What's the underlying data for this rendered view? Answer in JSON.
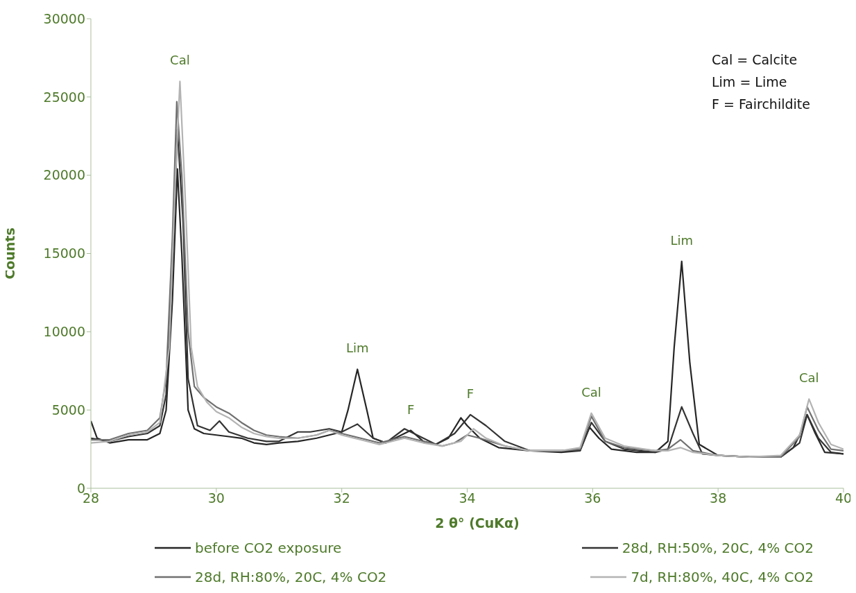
{
  "chart_data": {
    "type": "line",
    "xlabel": "2 θ° (CuKα)",
    "ylabel": "Counts",
    "xlim": [
      28,
      40
    ],
    "xticks": [
      28,
      30,
      32,
      34,
      36,
      38,
      40
    ],
    "ylim": [
      0,
      30000
    ],
    "yticks": [
      0,
      5000,
      10000,
      15000,
      20000,
      25000,
      30000
    ],
    "legend": "bottom",
    "marker": "none",
    "line_style": "solid",
    "series": [
      {
        "name": "before CO2 exposure",
        "color": "#262626",
        "x": [
          28.0,
          28.1,
          28.3,
          28.6,
          28.9,
          29.1,
          29.2,
          29.3,
          29.38,
          29.45,
          29.55,
          29.65,
          29.8,
          30.0,
          30.2,
          30.4,
          30.6,
          30.8,
          31.0,
          31.3,
          31.6,
          31.8,
          32.0,
          32.1,
          32.25,
          32.4,
          32.5,
          32.7,
          32.9,
          33.1,
          33.3,
          33.5,
          33.7,
          33.9,
          34.0,
          34.2,
          34.5,
          35.0,
          35.5,
          35.8,
          35.95,
          36.1,
          36.3,
          36.7,
          37.0,
          37.2,
          37.3,
          37.42,
          37.55,
          37.7,
          38.0,
          38.5,
          39.0,
          39.2,
          39.3,
          39.42,
          39.55,
          39.7,
          40.0
        ],
        "values": [
          4300,
          3200,
          2900,
          3100,
          3100,
          3500,
          5000,
          12000,
          20400,
          15000,
          5000,
          3800,
          3500,
          3400,
          3300,
          3200,
          2900,
          2800,
          2900,
          3000,
          3200,
          3400,
          3600,
          5000,
          7600,
          5000,
          3200,
          2900,
          3300,
          3700,
          3000,
          2800,
          3200,
          4500,
          4000,
          3200,
          2600,
          2400,
          2300,
          2400,
          3900,
          3200,
          2500,
          2300,
          2300,
          3000,
          9000,
          14500,
          8000,
          2800,
          2100,
          2000,
          2000,
          2600,
          3400,
          4700,
          3500,
          2300,
          2200
        ]
      },
      {
        "name": "28d, RH:50%, 20C, 4% CO2",
        "color": "#333333",
        "x": [
          28.0,
          28.3,
          28.6,
          28.9,
          29.1,
          29.2,
          29.3,
          29.38,
          29.47,
          29.55,
          29.7,
          29.9,
          30.05,
          30.2,
          30.5,
          30.8,
          31.0,
          31.3,
          31.5,
          31.8,
          32.0,
          32.25,
          32.5,
          32.7,
          33.0,
          33.2,
          33.5,
          33.8,
          34.05,
          34.3,
          34.6,
          35.0,
          35.5,
          35.8,
          35.98,
          36.2,
          36.5,
          37.0,
          37.2,
          37.42,
          37.6,
          37.75,
          38.0,
          38.5,
          39.0,
          39.3,
          39.42,
          39.6,
          39.8,
          40.0
        ],
        "values": [
          3200,
          3000,
          3300,
          3500,
          4000,
          6000,
          14000,
          22900,
          17000,
          7000,
          4000,
          3700,
          4300,
          3600,
          3200,
          3000,
          3000,
          3600,
          3600,
          3800,
          3600,
          4100,
          3200,
          2900,
          3800,
          3400,
          2800,
          3500,
          4700,
          4000,
          3000,
          2400,
          2400,
          2400,
          4200,
          3000,
          2500,
          2300,
          2500,
          5200,
          3500,
          2200,
          2100,
          2000,
          2000,
          2900,
          4700,
          3200,
          2300,
          2200
        ]
      },
      {
        "name": "28d, RH:80%, 20C, 4% CO2",
        "color": "#707070",
        "x": [
          28.0,
          28.3,
          28.6,
          28.9,
          29.1,
          29.2,
          29.3,
          29.37,
          29.45,
          29.55,
          29.65,
          29.8,
          30.0,
          30.2,
          30.4,
          30.6,
          30.8,
          31.0,
          31.3,
          31.6,
          31.8,
          32.0,
          32.3,
          32.6,
          33.0,
          33.3,
          33.6,
          33.8,
          34.0,
          34.2,
          34.6,
          35.0,
          35.5,
          35.8,
          35.98,
          36.2,
          36.5,
          37.0,
          37.2,
          37.4,
          37.6,
          38.0,
          38.5,
          39.0,
          39.3,
          39.42,
          39.6,
          39.8,
          40.0
        ],
        "values": [
          3100,
          3100,
          3500,
          3700,
          4500,
          7000,
          16000,
          24700,
          20000,
          10000,
          6500,
          5800,
          5200,
          4800,
          4200,
          3700,
          3400,
          3300,
          3200,
          3400,
          3700,
          3500,
          3200,
          2900,
          3300,
          3000,
          2700,
          2900,
          3400,
          3200,
          2700,
          2400,
          2400,
          2500,
          4600,
          3000,
          2600,
          2400,
          2500,
          3100,
          2400,
          2100,
          2000,
          2000,
          3300,
          5200,
          3700,
          2500,
          2400
        ]
      },
      {
        "name": "7d, RH:80%, 40C, 4% CO2",
        "color": "#b3b3b3",
        "x": [
          28.0,
          28.3,
          28.6,
          28.9,
          29.1,
          29.25,
          29.35,
          29.42,
          29.5,
          29.6,
          29.7,
          29.85,
          30.0,
          30.2,
          30.4,
          30.6,
          30.8,
          31.0,
          31.3,
          31.6,
          31.8,
          32.0,
          32.3,
          32.6,
          33.0,
          33.3,
          33.6,
          33.9,
          34.1,
          34.3,
          34.6,
          35.0,
          35.5,
          35.8,
          35.98,
          36.2,
          36.5,
          37.0,
          37.2,
          37.4,
          37.6,
          38.0,
          38.5,
          39.0,
          39.3,
          39.45,
          39.6,
          39.8,
          40.0
        ],
        "values": [
          2900,
          3000,
          3400,
          3600,
          4200,
          9000,
          20000,
          26000,
          19000,
          9000,
          6500,
          5500,
          4900,
          4500,
          3900,
          3500,
          3300,
          3200,
          3200,
          3400,
          3700,
          3400,
          3100,
          2800,
          3200,
          2900,
          2700,
          3000,
          3800,
          3200,
          2700,
          2400,
          2400,
          2600,
          4800,
          3200,
          2700,
          2400,
          2400,
          2600,
          2300,
          2100,
          2000,
          2100,
          3400,
          5700,
          4200,
          2800,
          2500
        ]
      }
    ],
    "annotations": [
      {
        "text": "Cal",
        "x": 29.42,
        "y": 26000
      },
      {
        "text": "Lim",
        "x": 32.25,
        "y": 7600
      },
      {
        "text": "F",
        "x": 33.1,
        "y": 3700
      },
      {
        "text": "F",
        "x": 34.05,
        "y": 4700
      },
      {
        "text": "Cal",
        "x": 35.98,
        "y": 4800
      },
      {
        "text": "Lim",
        "x": 37.42,
        "y": 14500
      },
      {
        "text": "Cal",
        "x": 39.45,
        "y": 5700
      },
      "Cal = Calcite",
      "Lim = Lime",
      "F = Fairchildite"
    ]
  }
}
